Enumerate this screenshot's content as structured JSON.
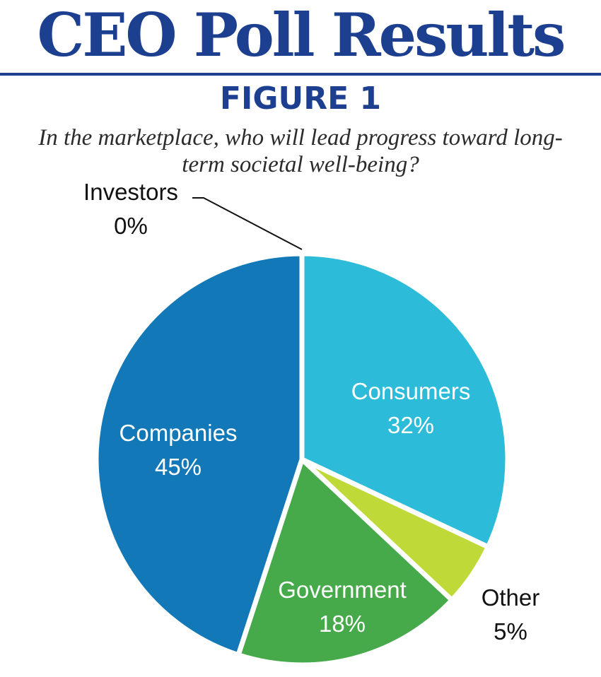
{
  "header": {
    "title": "CEO Poll Results",
    "figure_label": "FIGURE 1",
    "question": "In the marketplace, who will lead progress toward long-term societal well-being?"
  },
  "chart_data": {
    "type": "pie",
    "title": "CEO Poll Results",
    "subtitle": "FIGURE 1",
    "question": "In the marketplace, who will lead progress toward long-term societal well-being?",
    "start_position": "12 o'clock, clockwise",
    "slices": [
      {
        "label": "Consumers",
        "value": 32,
        "value_label": "32%",
        "color": "#2cbbd9",
        "label_color": "#ffffff"
      },
      {
        "label": "Other",
        "value": 5,
        "value_label": "5%",
        "color": "#bfd939",
        "label_color": "#111111"
      },
      {
        "label": "Government",
        "value": 18,
        "value_label": "18%",
        "color": "#47aa4a",
        "label_color": "#ffffff"
      },
      {
        "label": "Companies",
        "value": 45,
        "value_label": "45%",
        "color": "#1378b8",
        "label_color": "#ffffff"
      },
      {
        "label": "Investors",
        "value": 0,
        "value_label": "0%",
        "color": "#111111",
        "label_color": "#111111"
      }
    ]
  }
}
